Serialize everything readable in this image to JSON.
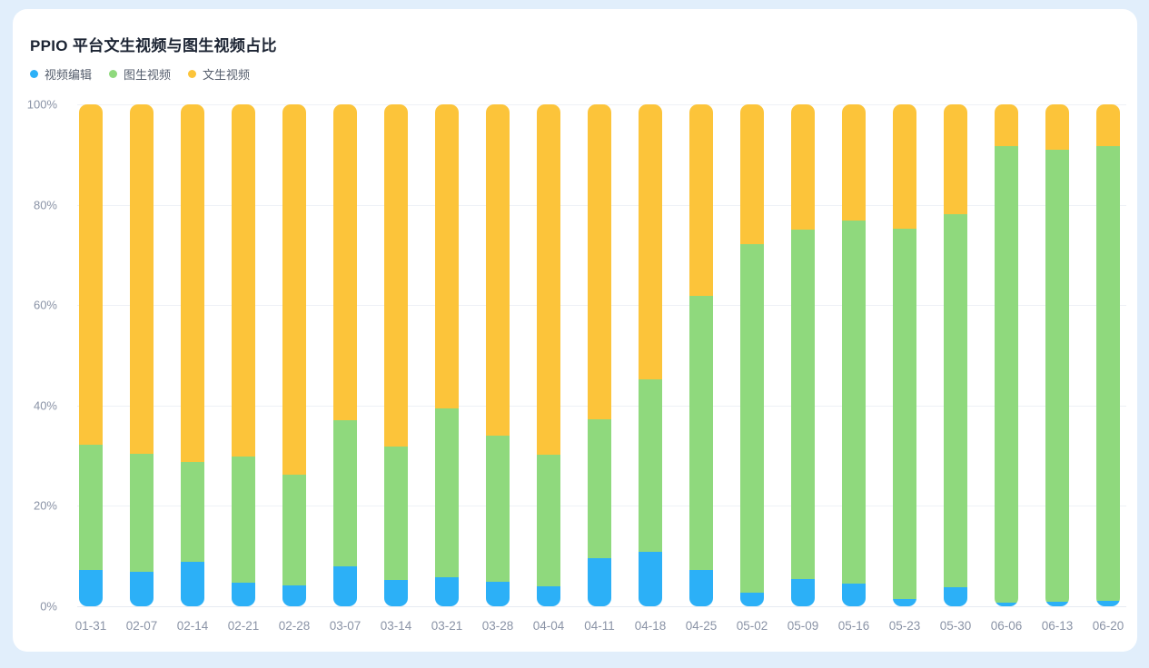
{
  "page": {
    "background_color": "#e1eefb",
    "card_background_color": "#ffffff"
  },
  "header": {
    "title": "PPIO 平台文生视频与图生视频占比"
  },
  "legend": {
    "items": [
      {
        "label": "视频编辑",
        "color": "#2cb0f7"
      },
      {
        "label": "图生视频",
        "color": "#8fd97d"
      },
      {
        "label": "文生视频",
        "color": "#fcc43a"
      }
    ]
  },
  "axis": {
    "yticks": [
      "0%",
      "20%",
      "40%",
      "60%",
      "80%",
      "100%"
    ],
    "tick_color": "#8a93a6",
    "grid_color": "#eef1f6"
  },
  "chart_data": {
    "type": "bar",
    "stacked": true,
    "unit": "percent",
    "title": "PPIO 平台文生视频与图生视频占比",
    "xlabel": "",
    "ylabel": "",
    "ylim": [
      0,
      100
    ],
    "grid": true,
    "legend_position": "top-left",
    "categories": [
      "01-31",
      "02-07",
      "02-14",
      "02-21",
      "02-28",
      "03-07",
      "03-14",
      "03-21",
      "03-28",
      "04-04",
      "04-11",
      "04-18",
      "04-25",
      "05-02",
      "05-09",
      "05-16",
      "05-23",
      "05-30",
      "06-06",
      "06-13",
      "06-20"
    ],
    "stack_order_bottom_to_top": [
      "视频编辑",
      "图生视频",
      "文生视频"
    ],
    "series": [
      {
        "name": "视频编辑",
        "color": "#2cb0f7",
        "values": [
          7.2,
          6.9,
          8.9,
          4.7,
          4.2,
          7.9,
          5.2,
          5.8,
          4.9,
          4.0,
          9.6,
          10.9,
          7.3,
          2.8,
          5.5,
          4.5,
          1.5,
          3.8,
          0.7,
          0.9,
          1.0
        ]
      },
      {
        "name": "图生视频",
        "color": "#8fd97d",
        "values": [
          24.9,
          23.5,
          19.8,
          25.1,
          22.0,
          29.2,
          26.7,
          33.6,
          29.1,
          26.2,
          27.7,
          34.3,
          54.6,
          69.3,
          69.6,
          72.3,
          73.7,
          74.3,
          90.9,
          90.1,
          90.7
        ]
      },
      {
        "name": "文生视频",
        "color": "#fcc43a",
        "values": [
          67.9,
          69.6,
          71.3,
          70.2,
          73.8,
          62.9,
          68.1,
          60.6,
          66.0,
          69.8,
          62.7,
          54.8,
          38.1,
          27.9,
          24.9,
          23.2,
          24.8,
          21.9,
          8.4,
          9.0,
          8.3
        ]
      }
    ]
  }
}
